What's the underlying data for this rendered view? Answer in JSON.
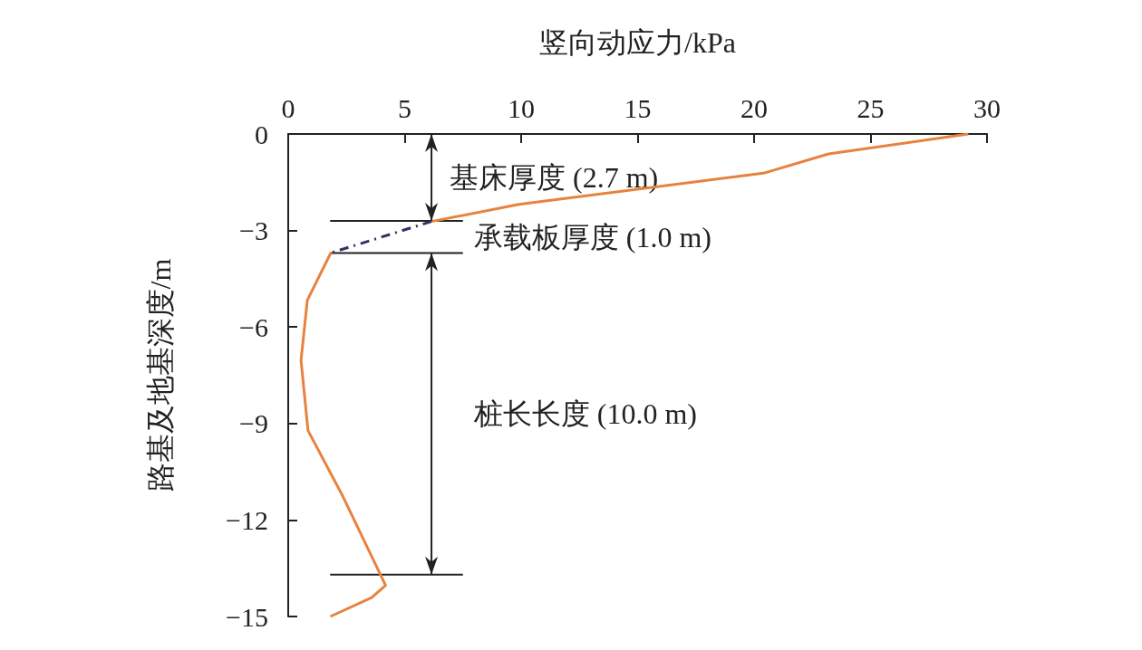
{
  "chart_data": {
    "type": "line",
    "xlabel": "竖向动应力/kPa",
    "ylabel": "路基及地基深度/m",
    "xlim": [
      0,
      30
    ],
    "xticks": [
      0,
      5,
      10,
      15,
      20,
      25,
      30
    ],
    "ylim": [
      -15,
      0
    ],
    "yticks": [
      0,
      {
        "value": -3,
        "label": "−3"
      },
      {
        "value": -6,
        "label": "−6"
      },
      {
        "value": -9,
        "label": "−9"
      },
      {
        "value": -12,
        "label": "−12"
      },
      {
        "value": -15,
        "label": "−15"
      }
    ],
    "marker": "none",
    "series": [
      {
        "color": "#e8823f",
        "line_style": "solid",
        "x": [
          29.2,
          23.2,
          20.4,
          9.9,
          6.15
        ],
        "values": [
          0,
          -0.62,
          -1.22,
          -2.19,
          -2.72
        ]
      },
      {
        "color": "#2e3560",
        "line_style": "dashed",
        "x": [
          6.15,
          1.9
        ],
        "values": [
          -2.72,
          -3.68
        ]
      },
      {
        "color": "#e8823f",
        "line_style": "solid",
        "x": [
          1.84,
          0.82,
          0.55,
          0.85,
          2.3,
          4.18,
          3.58,
          1.81
        ],
        "values": [
          -3.68,
          -5.17,
          -7.04,
          -9.22,
          -11.2,
          -14.03,
          -14.41,
          -15
        ]
      }
    ],
    "ref_lines": [
      {
        "axis": "y",
        "value": -2.7,
        "color": "#222222"
      },
      {
        "axis": "y",
        "value": -3.7,
        "color": "#222222"
      },
      {
        "axis": "y",
        "value": -13.7,
        "color": "#222222"
      }
    ],
    "annotations": [
      "基床厚度 (2.7 m)",
      "承载板厚度 (1.0 m)",
      "桩长长度 (10.0 m)"
    ]
  }
}
